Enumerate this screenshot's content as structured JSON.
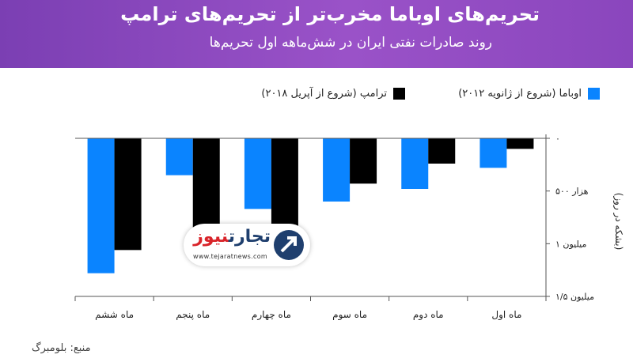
{
  "header": {
    "title": "تحریم‌های اوباما مخرب‌تر از تحریم‌های ترامپ",
    "subtitle": "روند صادرات نفتی ایران در شش‌ماهه اول تحریم‌ها"
  },
  "legend": {
    "obama": "اوباما (شروع از ژانویه ۲۰۱۲)",
    "trump": "ترامپ (شروع از آپریل ۲۰۱۸)"
  },
  "logo": {
    "text_part1": "تجارت",
    "text_part2": "نیوز",
    "url": "www.tejaratnews.com"
  },
  "source": "منبع: بلومبرگ",
  "colors": {
    "obama": "#0a84ff",
    "trump": "#000000",
    "banner": "#8a46bd"
  },
  "chart_data": {
    "type": "bar",
    "categories": [
      "ماه اول",
      "ماه دوم",
      "ماه سوم",
      "ماه چهارم",
      "ماه پنجم",
      "ماه ششم"
    ],
    "series": [
      {
        "name": "اوباما (شروع از ژانویه ۲۰۱۲)",
        "values": [
          -280000,
          -480000,
          -600000,
          -670000,
          -350000,
          -1280000
        ]
      },
      {
        "name": "ترامپ (شروع از آپریل ۲۰۱۸)",
        "values": [
          -100000,
          -240000,
          -430000,
          -840000,
          -1110000,
          -1060000
        ]
      }
    ],
    "ylabel": "(بشکه در روز)",
    "ylim": [
      -1500000,
      0
    ],
    "yticks": [
      0,
      -500000,
      -1000000,
      -1500000
    ],
    "ytick_labels": [
      "۰",
      "۵۰۰ هزار",
      "۱ میلیون",
      "۱/۵ میلیون"
    ],
    "axis_position": "right",
    "legend_position": "top",
    "grid": false
  }
}
